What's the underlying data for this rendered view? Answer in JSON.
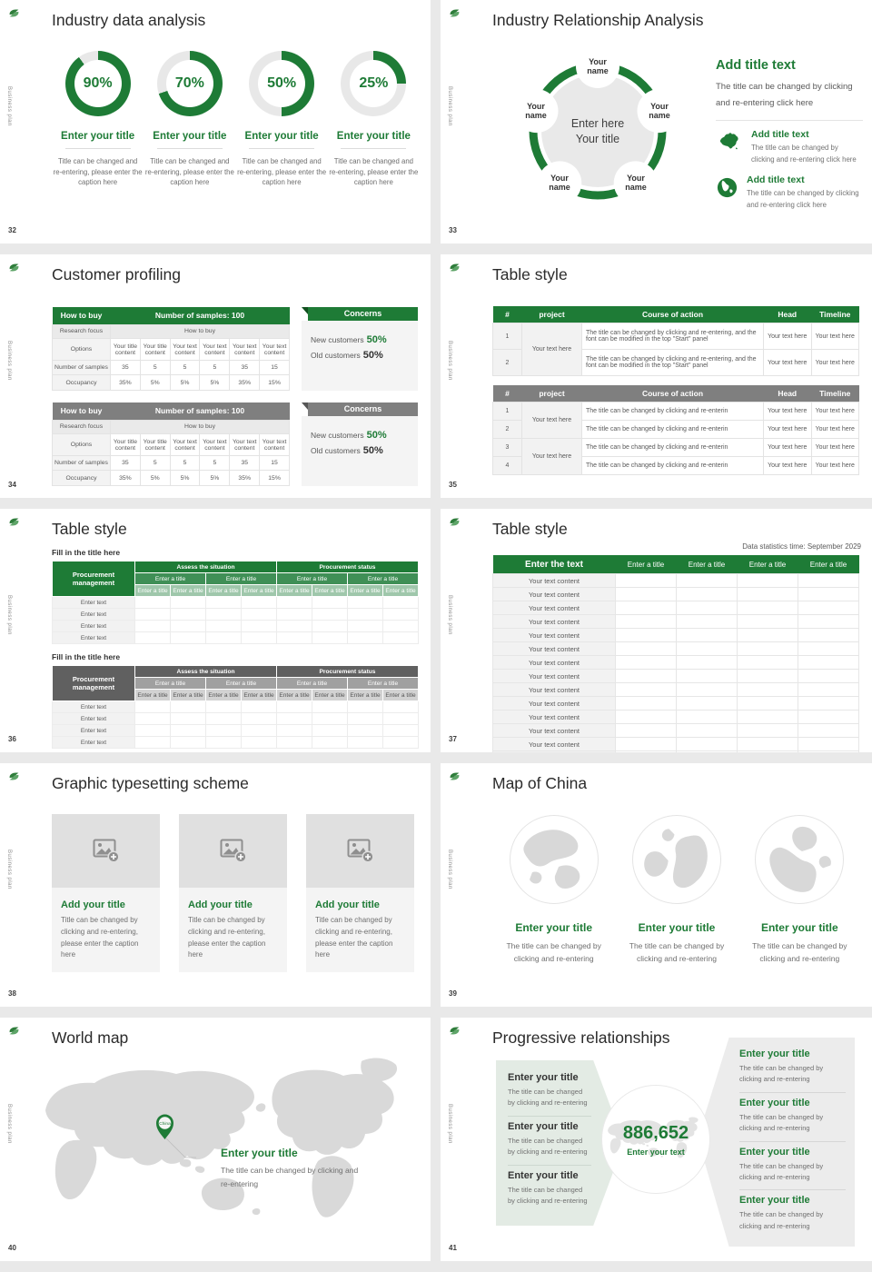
{
  "theme": {
    "green": "#1E7B36",
    "gray": "#7f7f7f",
    "donut_rest": "#e8e8e8"
  },
  "sidebar_text": "Business plan",
  "slides": [
    {
      "number": "32",
      "title": "Industry data analysis",
      "chart": {
        "type": "donut",
        "values": [
          90,
          70,
          50,
          25
        ],
        "labels": [
          "90%",
          "70%",
          "50%",
          "25%"
        ]
      },
      "item_title": "Enter your title",
      "item_caption": "Title can be changed and re-entering, please enter the caption here"
    },
    {
      "number": "33",
      "title": "Industry Relationship Analysis",
      "node_label": "Your name",
      "center_line1": "Enter here",
      "center_line2": "Your title",
      "panel": {
        "heading": "Add title text",
        "body": "The title can be changed by clicking and re-entering click here",
        "items": [
          {
            "icon": "china-map-icon",
            "heading": "Add title text",
            "body": "The title can be changed by clicking and re-entering click here"
          },
          {
            "icon": "globe-icon",
            "heading": "Add title text",
            "body": "The title can be changed by clicking and re-entering click here"
          }
        ]
      }
    },
    {
      "number": "34",
      "title": "Customer profiling",
      "table": {
        "header_left": "How to buy",
        "header_right": "Number of samples: 100",
        "row2_left": "Research focus",
        "row2_right": "How to buy",
        "options_label": "Options",
        "options": [
          "Your title content",
          "Your title content",
          "Your text content",
          "Your text content",
          "Your text content",
          "Your text content"
        ],
        "samples_label": "Number of samples",
        "samples": [
          "35",
          "5",
          "5",
          "5",
          "35",
          "15"
        ],
        "occupancy_label": "Occupancy",
        "occupancy": [
          "35%",
          "5%",
          "5%",
          "5%",
          "35%",
          "15%"
        ]
      },
      "concerns": {
        "heading": "Concerns",
        "lines": [
          {
            "label": "New customers",
            "value": "50%"
          },
          {
            "label": "Old customers",
            "value": "50%"
          }
        ]
      }
    },
    {
      "number": "35",
      "title": "Table style",
      "columns": [
        "#",
        "project",
        "Course of action",
        "Head",
        "Timeline"
      ],
      "table1": {
        "project": "Your text here",
        "rows": [
          {
            "num": "1",
            "course": "The title can be changed by clicking and re-entering, and the font can be modified in the top \"Start\" panel",
            "head": "Your text here",
            "timeline": "Your text here"
          },
          {
            "num": "2",
            "course": "The title can be changed by clicking and re-entering, and the font can be modified in the top \"Start\" panel",
            "head": "Your text here",
            "timeline": "Your text here"
          }
        ]
      },
      "table2": {
        "projects": [
          "Your text here",
          "Your text here"
        ],
        "rows": [
          {
            "num": "1",
            "course": "The title can be changed by clicking and re-enterin",
            "head": "Your text here",
            "timeline": "Your text here"
          },
          {
            "num": "2",
            "course": "The title can be changed by clicking and re-enterin",
            "head": "Your text here",
            "timeline": "Your text here"
          },
          {
            "num": "3",
            "course": "The title can be changed by clicking and re-enterin",
            "head": "Your text here",
            "timeline": "Your text here"
          },
          {
            "num": "4",
            "course": "The title can be changed by clicking and re-enterin",
            "head": "Your text here",
            "timeline": "Your text here"
          }
        ]
      }
    },
    {
      "number": "36",
      "title": "Table style",
      "section_heading": "Fill in the title here",
      "corner": "Procurement management",
      "group_headers": [
        "Assess the situation",
        "Procurement status"
      ],
      "sub_header": "Enter a title",
      "leaf_header": "Enter a title",
      "row_label": "Enter text"
    },
    {
      "number": "37",
      "title": "Table style",
      "caption": "Data statistics time: September 2029",
      "col1_header": "Enter the text",
      "col_header": "Enter a title",
      "col_count": 4,
      "row_label": "Your text content",
      "row_count": 14
    },
    {
      "number": "38",
      "title": "Graphic typesetting scheme",
      "card_title": "Add your title",
      "card_caption": "Title can be changed by clicking and re-entering, please enter the caption here",
      "card_count": 3
    },
    {
      "number": "39",
      "title": "Map of China",
      "item_title": "Enter your title",
      "item_caption": "The title can be changed by clicking and re-entering",
      "count": 3
    },
    {
      "number": "40",
      "title": "World map",
      "pin_label": "China",
      "callout_title": "Enter your title",
      "callout_caption": "The title can be changed by clicking and re-entering"
    },
    {
      "number": "41",
      "title": "Progressive relationships",
      "center_value": "886,652",
      "center_label": "Enter your text",
      "left_items": [
        {
          "title": "Enter your title",
          "caption": "The title can be changed by clicking and re-entering"
        },
        {
          "title": "Enter your title",
          "caption": "The title can be changed by clicking and re-entering"
        },
        {
          "title": "Enter your title",
          "caption": "The title can be changed by clicking and re-entering"
        }
      ],
      "right_items": [
        {
          "title": "Enter your title",
          "caption": "The title can be changed by clicking and re-entering"
        },
        {
          "title": "Enter your title",
          "caption": "The title can be changed by clicking and re-entering"
        },
        {
          "title": "Enter your title",
          "caption": "The title can be changed by clicking and re-entering"
        },
        {
          "title": "Enter your title",
          "caption": "The title can be changed by clicking and re-entering"
        }
      ]
    }
  ]
}
